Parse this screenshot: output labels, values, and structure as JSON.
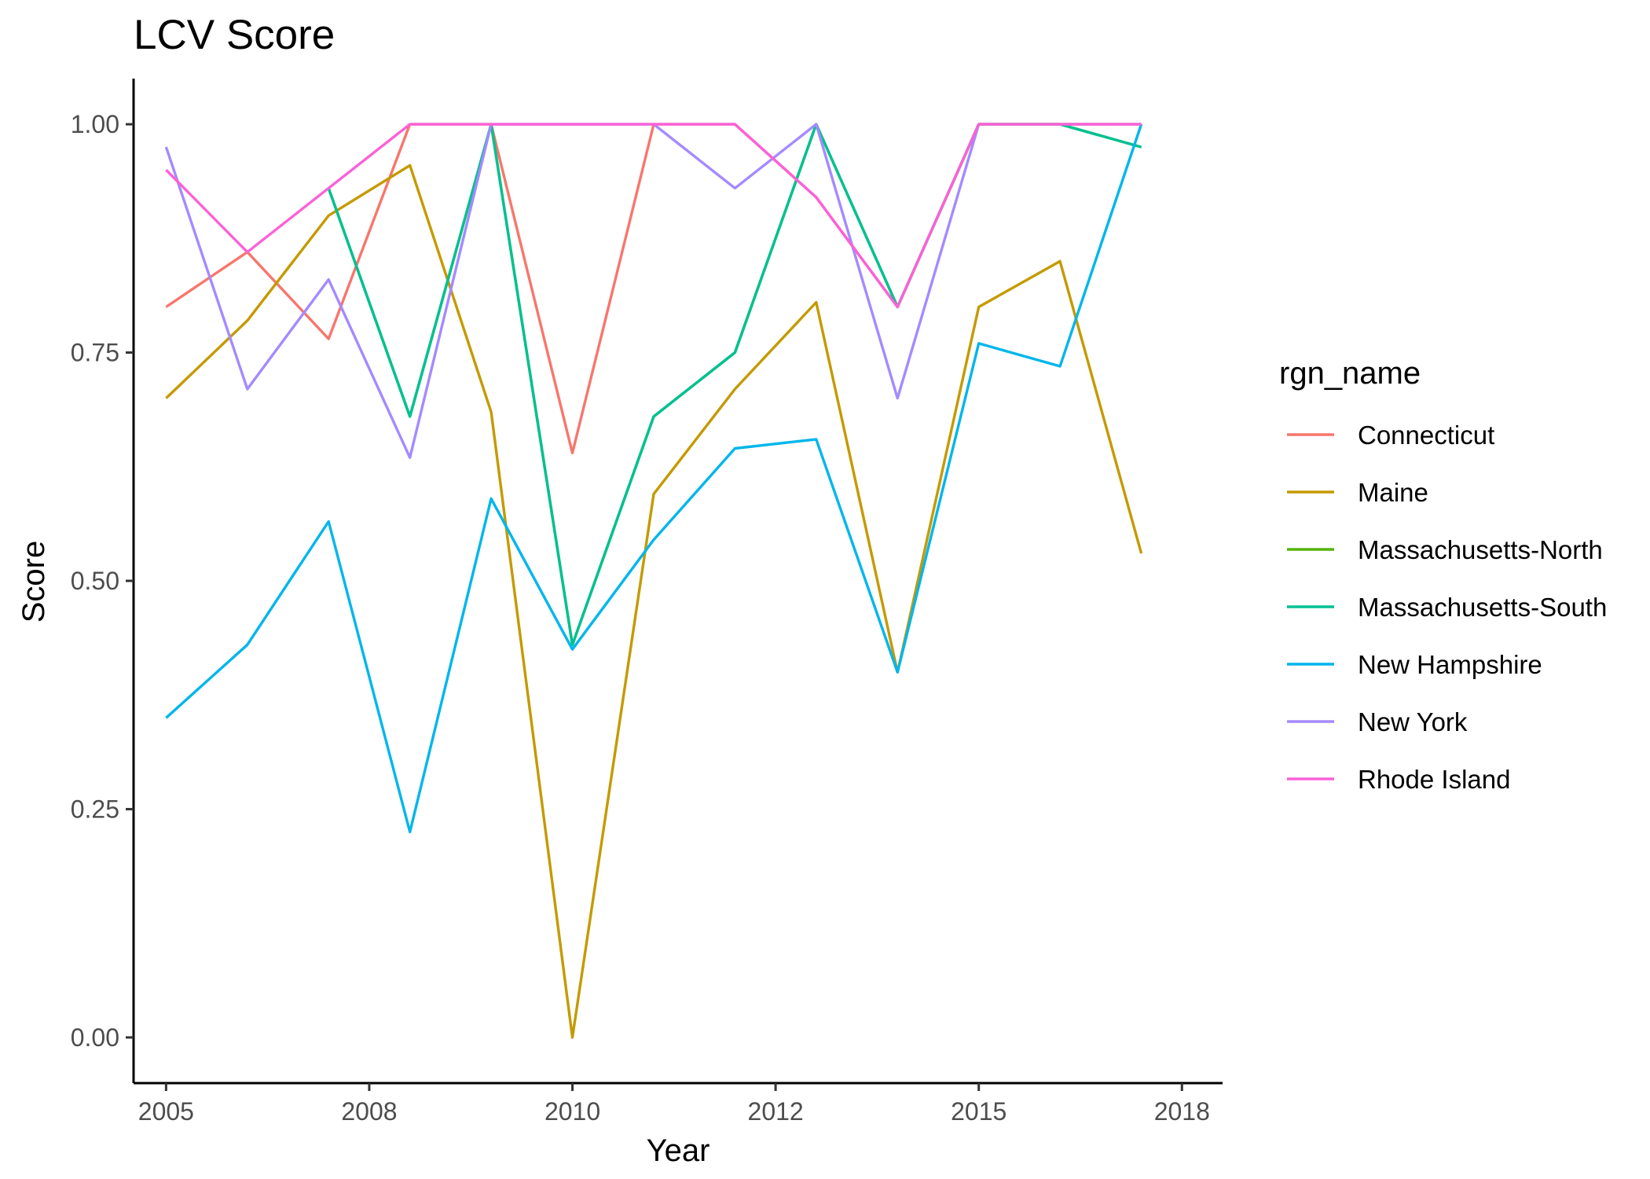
{
  "chart_data": {
    "type": "line",
    "title": "LCV Score",
    "xlabel": "Year",
    "ylabel": "Score",
    "xlim": [
      2004.6,
      2018.0
    ],
    "ylim": [
      -0.05,
      1.05
    ],
    "x_ticks": [
      {
        "value": 2005,
        "label": "2005"
      },
      {
        "value": 2007.5,
        "label": "2008"
      },
      {
        "value": 2010,
        "label": "2010"
      },
      {
        "value": 2012.5,
        "label": "2012"
      },
      {
        "value": 2015,
        "label": "2015"
      },
      {
        "value": 2017.5,
        "label": "2018"
      }
    ],
    "y_ticks": [
      {
        "value": 0.0,
        "label": "0.00"
      },
      {
        "value": 0.25,
        "label": "0.25"
      },
      {
        "value": 0.5,
        "label": "0.50"
      },
      {
        "value": 0.75,
        "label": "0.75"
      },
      {
        "value": 1.0,
        "label": "1.00"
      }
    ],
    "grid": false,
    "legend": {
      "title": "rgn_name",
      "position": "right"
    },
    "x": [
      2005,
      2006,
      2007,
      2008,
      2009,
      2010,
      2011,
      2012,
      2013,
      2014,
      2015,
      2016,
      2017
    ],
    "series": [
      {
        "name": "Connecticut",
        "color": "#F8766D",
        "values": [
          0.8,
          0.86,
          0.765,
          1.0,
          1.0,
          0.64,
          1.0,
          1.0,
          0.92,
          0.8,
          1.0,
          1.0,
          1.0
        ]
      },
      {
        "name": "Maine",
        "color": "#C49A00",
        "values": [
          0.7,
          0.785,
          0.9,
          0.955,
          0.685,
          0.0,
          0.595,
          0.71,
          0.805,
          0.4,
          0.8,
          0.85,
          0.53
        ]
      },
      {
        "name": "Massachusetts-North",
        "color": "#53B400",
        "values": [
          null,
          null,
          0.93,
          0.68,
          1.0,
          0.43,
          0.68,
          0.75,
          1.0,
          0.8,
          1.0,
          1.0,
          0.975
        ]
      },
      {
        "name": "Massachusetts-South",
        "color": "#00C094",
        "values": [
          null,
          null,
          0.93,
          0.68,
          1.0,
          0.43,
          0.68,
          0.75,
          1.0,
          0.8,
          1.0,
          1.0,
          0.975
        ]
      },
      {
        "name": "New Hampshire",
        "color": "#00B6EB",
        "values": [
          0.35,
          0.43,
          0.565,
          0.225,
          0.59,
          0.425,
          0.545,
          0.645,
          0.655,
          0.4,
          0.76,
          0.735,
          1.0
        ]
      },
      {
        "name": "New York",
        "color": "#A58AFF",
        "values": [
          0.975,
          0.71,
          0.83,
          0.635,
          1.0,
          1.0,
          1.0,
          0.93,
          1.0,
          0.7,
          1.0,
          1.0,
          1.0
        ]
      },
      {
        "name": "Rhode Island",
        "color": "#FB61D7",
        "values": [
          0.95,
          0.86,
          0.93,
          1.0,
          1.0,
          1.0,
          1.0,
          1.0,
          0.92,
          0.8,
          1.0,
          1.0,
          1.0
        ]
      }
    ]
  }
}
